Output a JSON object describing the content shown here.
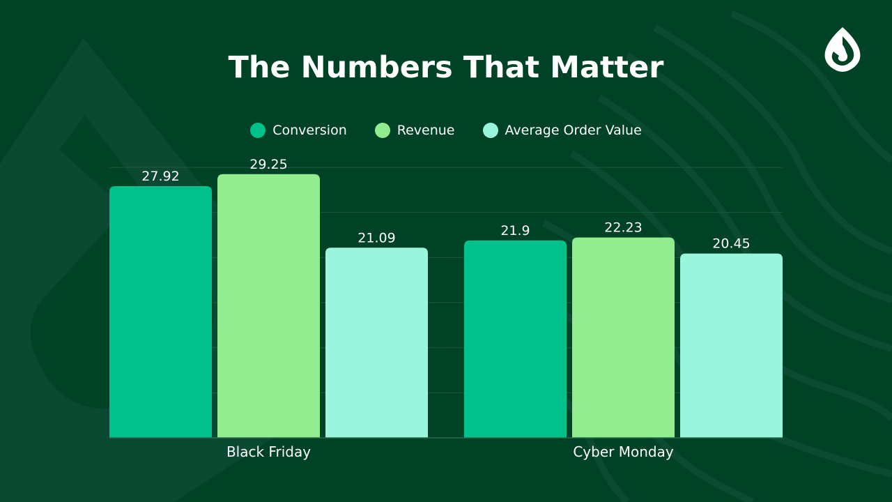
{
  "chart_data": {
    "type": "bar",
    "title": "The Numbers That Matter",
    "categories": [
      "Black Friday",
      "Cyber Monday"
    ],
    "series": [
      {
        "name": "Conversion",
        "values": [
          27.92,
          21.9
        ],
        "color": "#00c08b"
      },
      {
        "name": "Revenue",
        "values": [
          29.25,
          22.23
        ],
        "color": "#92ed8f"
      },
      {
        "name": "Average Order Value",
        "values": [
          21.09,
          20.45
        ],
        "color": "#9af5dd"
      }
    ],
    "ylim": [
      0,
      30
    ],
    "grid": true,
    "legend_position": "top",
    "background_color": "#004225"
  },
  "icons": {
    "logo": "droplet-logo-icon"
  }
}
